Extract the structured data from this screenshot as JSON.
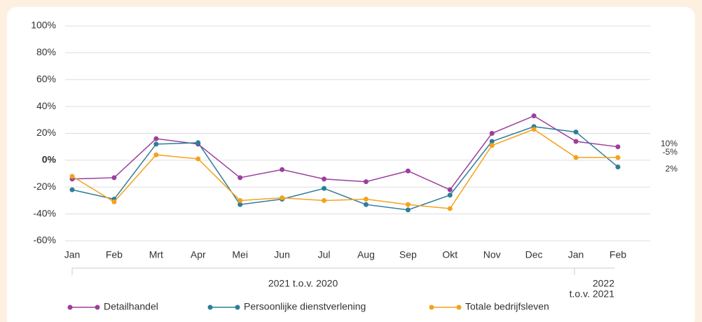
{
  "chart_data": {
    "type": "line",
    "categories": [
      "Jan",
      "Feb",
      "Mrt",
      "Apr",
      "Mei",
      "Jun",
      "Jul",
      "Aug",
      "Sep",
      "Okt",
      "Nov",
      "Dec",
      "Jan",
      "Feb"
    ],
    "groups": [
      {
        "label": [
          "2021 t.o.v. 2020"
        ],
        "from": 0,
        "to": 11
      },
      {
        "label": [
          "2022",
          "t.o.v. 2021"
        ],
        "from": 12,
        "to": 13
      }
    ],
    "series": [
      {
        "name": "Detailhandel",
        "color": "#9b3f9e",
        "values": [
          -14,
          -13,
          16,
          12,
          -13,
          -7,
          -14,
          -16,
          -8,
          -22,
          20,
          33,
          14,
          10
        ],
        "value_labels": [
          null,
          null,
          null,
          null,
          null,
          null,
          null,
          null,
          null,
          null,
          null,
          null,
          null,
          "10%"
        ]
      },
      {
        "name": "Persoonlijke dienstverlening",
        "color": "#2e7d9a",
        "values": [
          -22,
          -29,
          12,
          13,
          -33,
          -29,
          -21,
          -33,
          -37,
          -26,
          14,
          25,
          21,
          -5
        ],
        "value_labels": [
          null,
          null,
          null,
          null,
          null,
          null,
          null,
          null,
          null,
          null,
          null,
          null,
          null,
          "-5%"
        ]
      },
      {
        "name": "Totale bedrijfsleven",
        "color": "#f4a21d",
        "values": [
          -12,
          -31,
          4,
          1,
          -30,
          -28,
          -30,
          -29,
          -33,
          -36,
          11,
          23,
          2,
          2
        ],
        "value_labels": [
          null,
          null,
          null,
          null,
          null,
          null,
          null,
          null,
          null,
          null,
          null,
          null,
          null,
          "2%"
        ]
      }
    ],
    "ylim": [
      -60,
      100
    ],
    "yticks": [
      {
        "value": -60,
        "label": "-60%"
      },
      {
        "value": -40,
        "label": "-40%"
      },
      {
        "value": -20,
        "label": "-20%"
      },
      {
        "value": 0,
        "label": "0%"
      },
      {
        "value": 20,
        "label": "20%"
      },
      {
        "value": 40,
        "label": "40%"
      },
      {
        "value": 60,
        "label": "60%"
      },
      {
        "value": 80,
        "label": "80%"
      },
      {
        "value": 100,
        "label": "100%"
      }
    ],
    "grid": true,
    "legend": "bottom"
  }
}
